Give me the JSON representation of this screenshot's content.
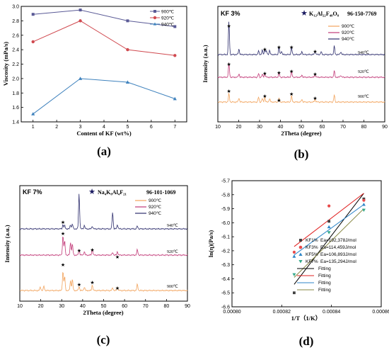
{
  "chart_data": [
    {
      "panel": "(a)",
      "type": "line",
      "xlabel": "Content of KF (wt%)",
      "ylabel": "Viscosity (mPa/s)",
      "xlim": [
        0.5,
        7.5
      ],
      "ylim": [
        1.4,
        3.0
      ],
      "xticks": [
        1,
        2,
        3,
        4,
        5,
        6,
        7
      ],
      "yticks": [
        1.4,
        1.6,
        1.8,
        2.0,
        2.2,
        2.4,
        2.6,
        2.8,
        3.0
      ],
      "ytick_labels": [
        "1.4",
        "1.6",
        "1.8",
        "2.0",
        "2.2",
        "2.4",
        "2.6",
        "2.8",
        "3.0"
      ],
      "legend_position": "top-right",
      "series": [
        {
          "name": "900℃",
          "color": "#5a5a96",
          "marker": "square",
          "x": [
            1,
            3,
            5,
            7
          ],
          "values": [
            2.89,
            2.95,
            2.8,
            2.72
          ]
        },
        {
          "name": "920℃",
          "color": "#d04a50",
          "marker": "circle",
          "x": [
            1,
            3,
            5,
            7
          ],
          "values": [
            2.51,
            2.8,
            2.4,
            2.32
          ]
        },
        {
          "name": "940℃",
          "color": "#3f82bd",
          "marker": "triangle",
          "x": [
            1,
            3,
            5,
            7
          ],
          "values": [
            1.51,
            2.0,
            1.95,
            1.72
          ]
        }
      ]
    },
    {
      "panel": "(b)",
      "type": "line",
      "xlabel": "2Theta (degree)",
      "ylabel": "Intensity (a.u.)",
      "xlim": [
        10,
        90
      ],
      "xticks": [
        10,
        20,
        30,
        40,
        50,
        60,
        70,
        80,
        90
      ],
      "corner_label": "KF 3%",
      "phase_label": "K₁₂Al₂₂F₄₈O₈",
      "phase_code": "96-150-7769",
      "legend_position": "top-right",
      "series": [
        {
          "name": "900℃",
          "color": "#f2a35c",
          "curve_label": "900℃"
        },
        {
          "name": "920℃",
          "color": "#c23a78",
          "curve_label": "920℃"
        },
        {
          "name": "940℃",
          "color": "#2f2f6e",
          "curve_label": "940℃"
        }
      ],
      "peaks": [
        15.3,
        20.1,
        29.5,
        31.3,
        32.5,
        33.3,
        34.8,
        39.3,
        40.5,
        45.3,
        50.3,
        56.6,
        59.5,
        65.8,
        68.9
      ],
      "marked_peaks": [
        15.3,
        32.5,
        39.3,
        45.3,
        56.6
      ]
    },
    {
      "panel": "(c)",
      "type": "line",
      "xlabel": "2Theta (degree)",
      "ylabel": "Intensity (a.u.)",
      "xlim": [
        10,
        90
      ],
      "xticks": [
        10,
        20,
        30,
        40,
        50,
        60,
        70,
        80,
        90
      ],
      "corner_label": "KF 7%",
      "phase_label": "Na₄K₈Al₄F₂₁",
      "phase_code": "96-101-1069",
      "legend_position": "top-right",
      "series": [
        {
          "name": "900℃",
          "color": "#f2a35c",
          "curve_label": "900℃"
        },
        {
          "name": "920℃",
          "color": "#c23a78",
          "curve_label": "920℃"
        },
        {
          "name": "940℃",
          "color": "#2f2f6e",
          "curve_label": "940℃"
        }
      ],
      "peaks": [
        19.8,
        21.5,
        30.6,
        31.4,
        34.2,
        35.1,
        38.3,
        40.8,
        44.6,
        54.3,
        56.6,
        66.1
      ],
      "marked_peaks": [
        30.6,
        38.3,
        44.6,
        56.6
      ]
    },
    {
      "panel": "(d)",
      "type": "scatter",
      "xlabel": "1/T（1/K）",
      "ylabel": "ln(η)(Pa/s)",
      "xlim": [
        0.0008,
        0.00086
      ],
      "ylim": [
        -6.6,
        -5.7
      ],
      "xticks": [
        0.0008,
        0.00082,
        0.00084,
        0.00086
      ],
      "xtick_labels": [
        "0.00080",
        "0.00082",
        "0.00084",
        "0.00086"
      ],
      "yticks": [
        -6.6,
        -6.5,
        -6.4,
        -6.3,
        -6.2,
        -6.1,
        -6.0,
        -5.9,
        -5.8,
        -5.7
      ],
      "ytick_labels": [
        "-6.6",
        "-6.5",
        "-6.4",
        "-6.3",
        "-6.2",
        "-6.1",
        "-6.0",
        "-5.9",
        "-5.8",
        "-5.7"
      ],
      "legend_position": "right",
      "series": [
        {
          "name": "KF1%",
          "ea": "Ea=192,378J/mol",
          "color": "#404040",
          "marker": "square",
          "x": [
            0.000825,
            0.000839,
            0.000853
          ],
          "values": [
            -6.5,
            -5.99,
            -5.83
          ],
          "fit": [
            -6.44,
            -5.79
          ]
        },
        {
          "name": "KF3%",
          "ea": "Ea=114,459J/mol",
          "color": "#e84a4a",
          "marker": "circle",
          "x": [
            0.000825,
            0.000839,
            0.000853
          ],
          "values": [
            -6.21,
            -5.88,
            -5.84
          ],
          "fit": [
            -6.17,
            -5.79
          ]
        },
        {
          "name": "KF5%",
          "ea": "Ea=106,893J/mol",
          "color": "#2f86c8",
          "marker": "triangle",
          "x": [
            0.000825,
            0.000839,
            0.000853
          ],
          "values": [
            -6.24,
            -6.03,
            -5.87
          ],
          "fit": [
            -6.23,
            -5.87
          ]
        },
        {
          "name": "KF7%",
          "ea": "Ea=135,294J/mol",
          "color": "#33a98a",
          "marker": "triangle-down",
          "x": [
            0.000825,
            0.000839,
            0.000853
          ],
          "values": [
            -6.37,
            -6.07,
            -5.91
          ],
          "fit": [
            -6.39,
            -5.9
          ]
        }
      ],
      "fit_legend": [
        {
          "label": "Fitting",
          "color": "#000000"
        },
        {
          "label": "Fitting",
          "color": "#e02020"
        },
        {
          "label": "Fitting",
          "color": "#2f86c8"
        },
        {
          "label": "Fitting",
          "color": "#888844"
        }
      ]
    }
  ]
}
